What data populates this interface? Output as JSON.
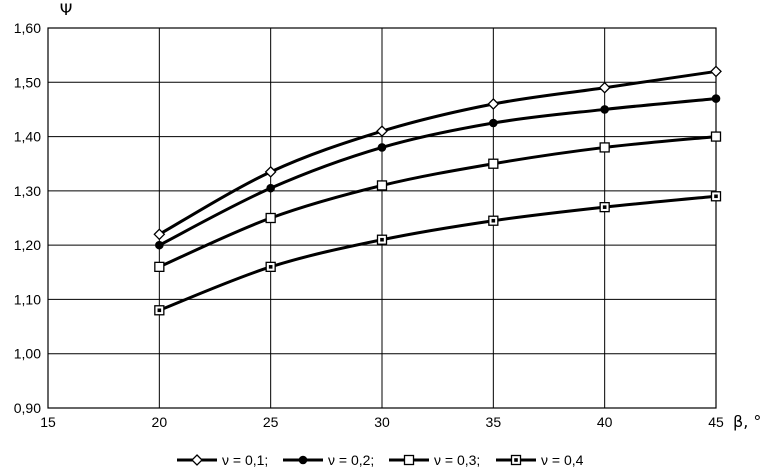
{
  "chart_data": {
    "type": "line",
    "xlabel": "β, °",
    "ylabel": "Ψ",
    "xlim": [
      15,
      45
    ],
    "ylim": [
      0.9,
      1.6
    ],
    "x_ticks": [
      "15",
      "20",
      "25",
      "30",
      "35",
      "40",
      "45"
    ],
    "y_ticks": [
      "0,90",
      "1,00",
      "1,10",
      "1,20",
      "1,30",
      "1,40",
      "1,50",
      "1,60"
    ],
    "grid": true,
    "legend_position": "bottom",
    "x": [
      20,
      25,
      30,
      35,
      40,
      45
    ],
    "series": [
      {
        "name": "ν = 0,1;",
        "marker": "diamond-open",
        "values": [
          1.22,
          1.335,
          1.41,
          1.46,
          1.49,
          1.52
        ]
      },
      {
        "name": "ν = 0,2;",
        "marker": "circle-filled",
        "values": [
          1.2,
          1.305,
          1.38,
          1.425,
          1.45,
          1.47
        ]
      },
      {
        "name": "ν = 0,3;",
        "marker": "square-open",
        "values": [
          1.16,
          1.25,
          1.31,
          1.35,
          1.38,
          1.4
        ]
      },
      {
        "name": "ν = 0,4",
        "marker": "square-dot",
        "values": [
          1.08,
          1.16,
          1.21,
          1.245,
          1.27,
          1.29
        ]
      }
    ]
  }
}
